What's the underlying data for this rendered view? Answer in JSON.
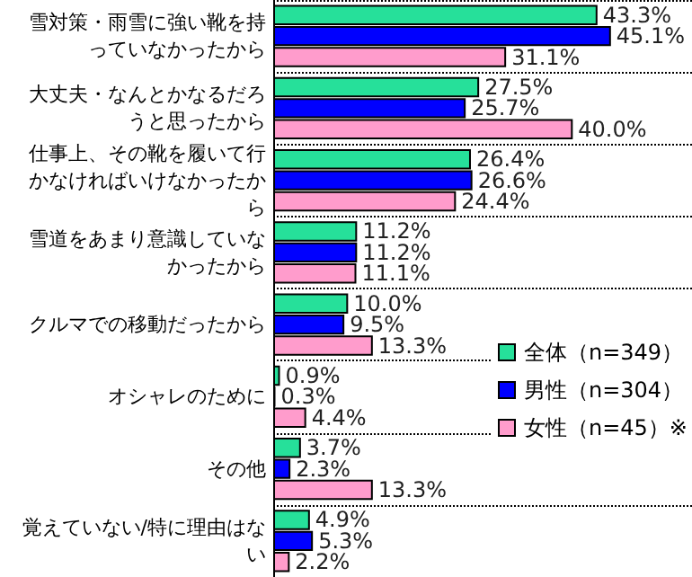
{
  "chart_data": {
    "type": "bar",
    "orientation": "horizontal",
    "grid": "y",
    "legend": "right",
    "categories": [
      "雪対策・雨雪に強い靴を持っていなかったから",
      "大丈夫・なんとかなるだろうと思ったから",
      "仕事上、その靴を履いて行かなければいけなかったから",
      "雪道をあまり意識していなかったから",
      "クルマでの移動だったから",
      "オシャレのために",
      "その他",
      "覚えていない/特に理由はない"
    ],
    "series": [
      {
        "name": "全体（n=349）",
        "color": "#26e09a",
        "values": [
          43.3,
          27.5,
          26.4,
          11.2,
          10.0,
          0.9,
          3.7,
          4.9
        ],
        "value_labels": [
          "43.3%",
          "27.5%",
          "26.4%",
          "11.2%",
          "10.0%",
          "0.9%",
          "3.7%",
          "4.9%"
        ]
      },
      {
        "name": "男性（n=304）",
        "color": "#0000ff",
        "values": [
          45.1,
          25.7,
          26.6,
          11.2,
          9.5,
          0.3,
          2.3,
          5.3
        ],
        "value_labels": [
          "45.1%",
          "25.7%",
          "26.6%",
          "11.2%",
          "9.5%",
          "0.3%",
          "2.3%",
          "5.3%"
        ]
      },
      {
        "name": "女性（n=45）※",
        "color": "#ff9ccc",
        "values": [
          31.1,
          40.0,
          24.4,
          11.1,
          13.3,
          4.4,
          13.3,
          2.2
        ],
        "value_labels": [
          "31.1%",
          "40.0%",
          "24.4%",
          "11.1%",
          "13.3%",
          "4.4%",
          "13.3%",
          "2.2%"
        ]
      }
    ]
  }
}
